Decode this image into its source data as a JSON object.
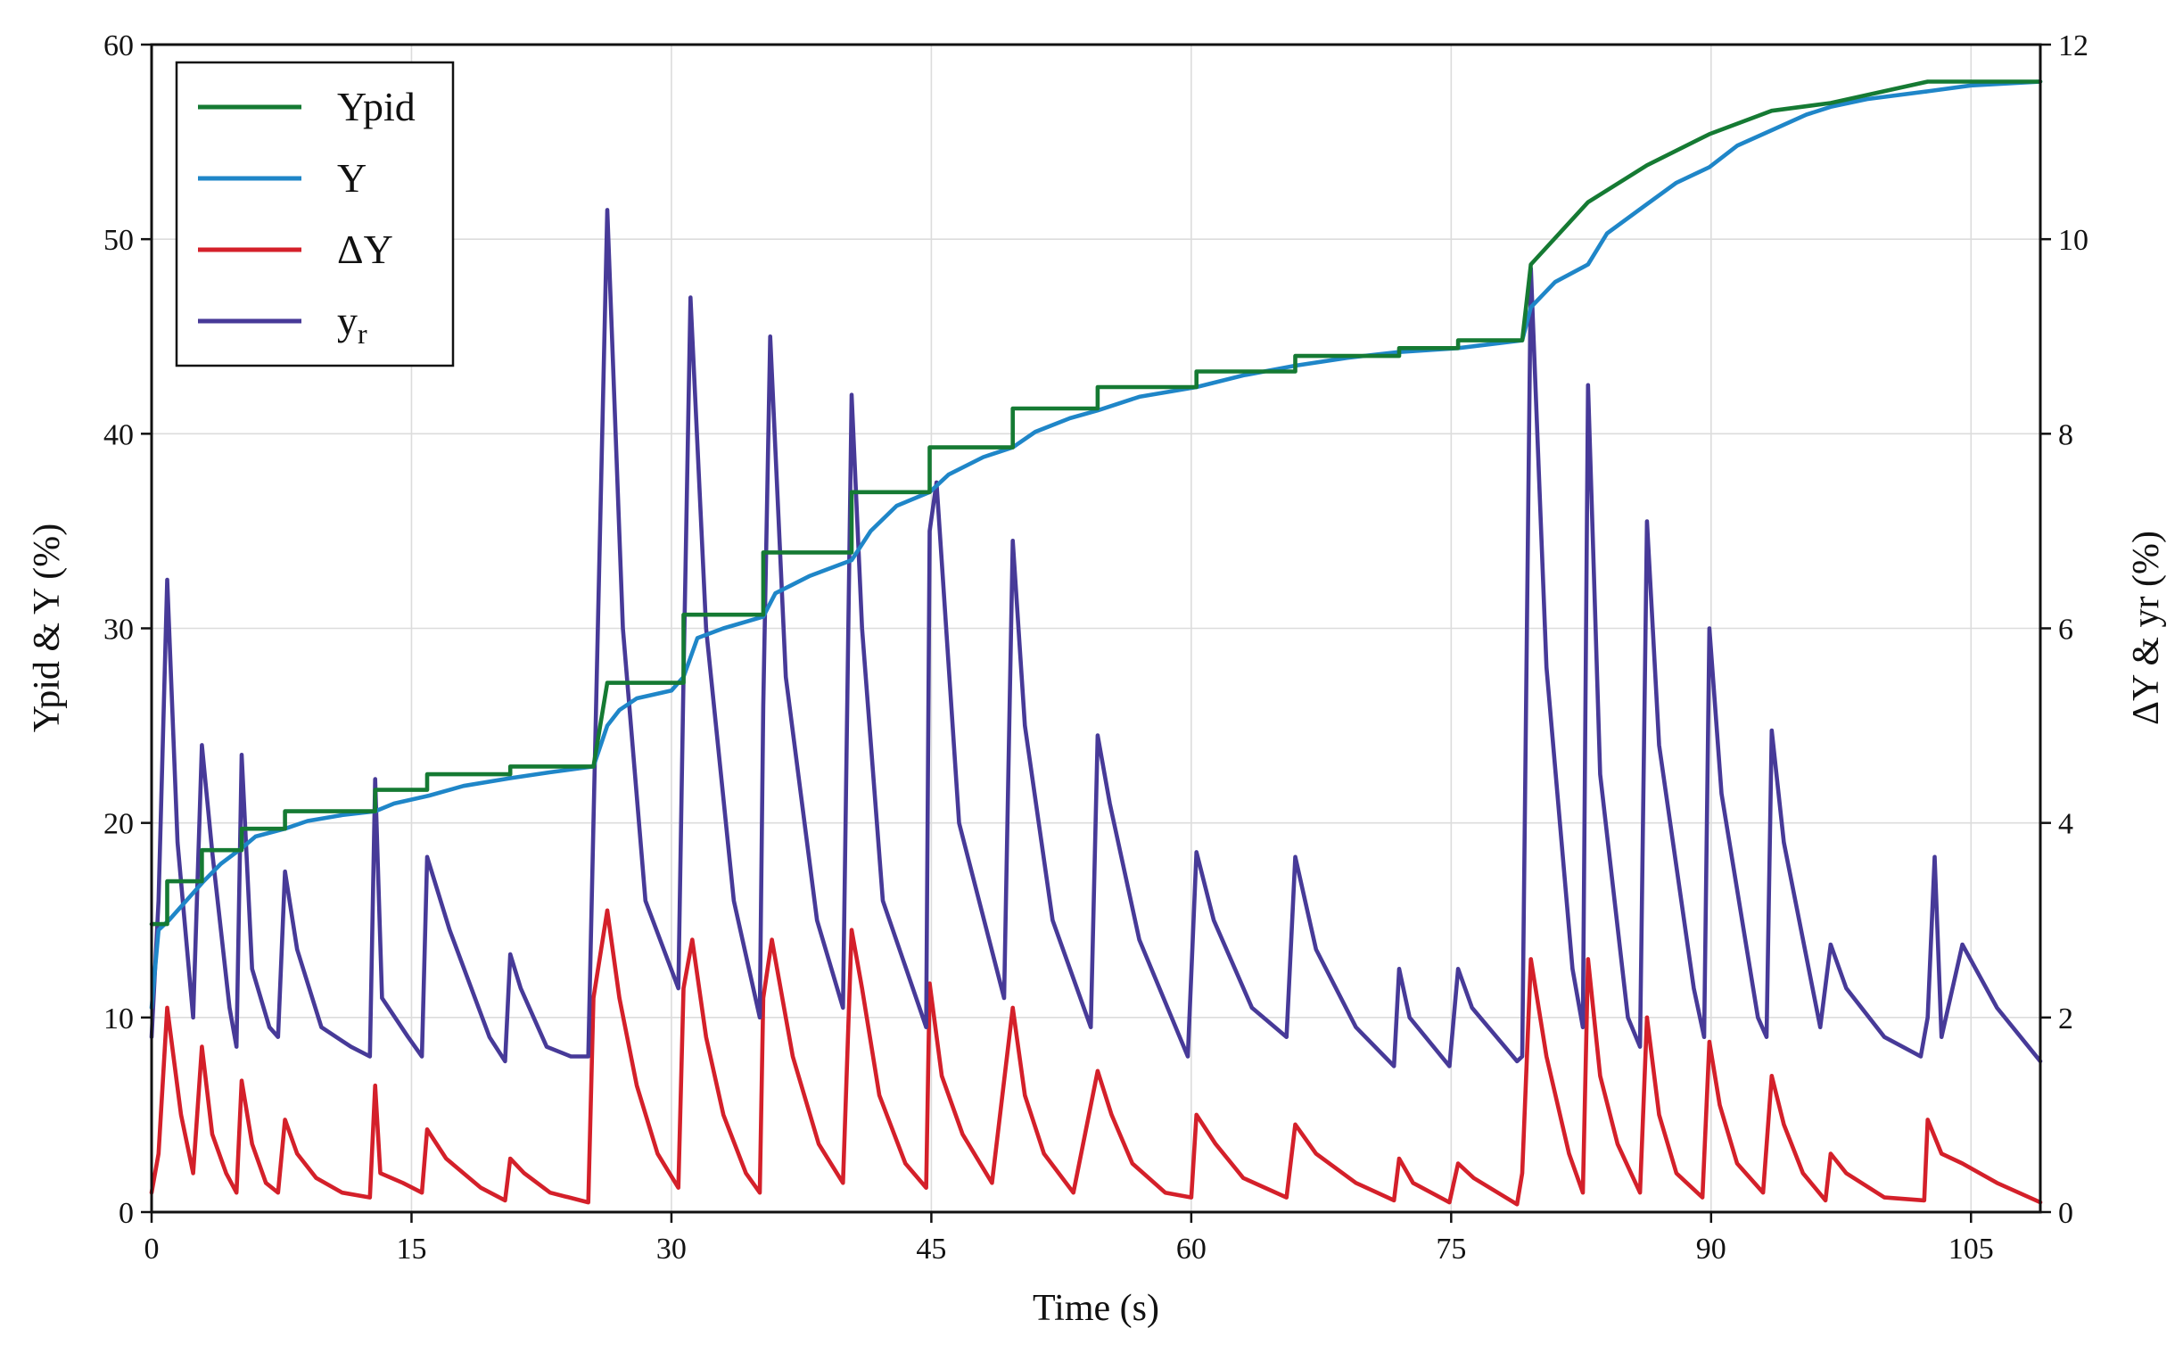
{
  "chart_data": {
    "type": "line",
    "title": "",
    "xlabel": "Time (s)",
    "ylabel_left": "Ypid & Y (%)",
    "ylabel_right": "ΔY & yr (%)",
    "xlim": [
      0,
      109
    ],
    "ylim_left": [
      0,
      60
    ],
    "ylim_right": [
      0,
      12
    ],
    "x_ticks": [
      0,
      15,
      30,
      45,
      60,
      75,
      90,
      105
    ],
    "y_left_ticks": [
      0,
      10,
      20,
      30,
      40,
      50,
      60
    ],
    "y_right_ticks": [
      0,
      2,
      4,
      6,
      8,
      10,
      12
    ],
    "grid": true,
    "legend_position": "top-left",
    "series": [
      {
        "name": "Ypid",
        "axis": "left",
        "color": "#157a33",
        "x": [
          0,
          0.9,
          0.9,
          2.9,
          2.9,
          5.2,
          5.2,
          7.7,
          7.7,
          12.9,
          12.9,
          15.9,
          15.9,
          20.7,
          20.7,
          25.5,
          26.3,
          26.3,
          30.7,
          30.7,
          35.3,
          35.3,
          40.4,
          40.4,
          44.9,
          44.9,
          49.7,
          49.7,
          54.6,
          54.6,
          60.3,
          60.3,
          66.0,
          66.0,
          72.0,
          72.0,
          75.4,
          75.4,
          79.1,
          79.6,
          79.6,
          82.9,
          82.9,
          86.3,
          86.3,
          89.9,
          89.9,
          93.5,
          93.5,
          96.9,
          96.9,
          102.5,
          102.5,
          109
        ],
        "values": [
          14.8,
          14.8,
          17.0,
          17.0,
          18.6,
          18.6,
          19.7,
          19.7,
          20.6,
          20.6,
          21.7,
          21.7,
          22.5,
          22.5,
          22.9,
          22.9,
          27.2,
          27.2,
          27.2,
          30.7,
          30.7,
          33.9,
          33.9,
          37.0,
          37.0,
          39.3,
          39.3,
          41.3,
          41.3,
          42.4,
          42.4,
          43.2,
          43.2,
          44.0,
          44.0,
          44.4,
          44.4,
          44.8,
          44.8,
          48.7,
          48.7,
          51.9,
          51.9,
          53.8,
          53.8,
          55.4,
          55.4,
          56.6,
          56.6,
          57.0,
          57.0,
          58.1,
          58.1,
          58.1
        ]
      },
      {
        "name": "Y",
        "axis": "left",
        "color": "#1f86c8",
        "x": [
          0,
          0.4,
          1.0,
          2.0,
          3.0,
          4.0,
          5.2,
          6.0,
          7.7,
          9.0,
          11.0,
          12.9,
          14.0,
          16.0,
          18.0,
          20.7,
          23.0,
          25.5,
          26.3,
          27.0,
          28.0,
          30.0,
          30.7,
          31.5,
          33.0,
          35.3,
          36.0,
          38.0,
          40.4,
          41.5,
          43.0,
          44.9,
          46.0,
          48.0,
          49.7,
          51.0,
          53.0,
          54.6,
          57.0,
          60.3,
          63.0,
          66.0,
          69.0,
          72.0,
          75.4,
          79.1,
          79.6,
          81.0,
          82.9,
          84.0,
          86.3,
          88.0,
          89.9,
          91.5,
          93.5,
          95.5,
          96.9,
          99.0,
          102.5,
          105.0,
          109.0
        ],
        "values": [
          10.5,
          14.5,
          15.0,
          16.0,
          17.0,
          17.9,
          18.7,
          19.3,
          19.7,
          20.1,
          20.4,
          20.6,
          21.0,
          21.4,
          21.9,
          22.3,
          22.6,
          22.9,
          25.0,
          25.8,
          26.4,
          26.8,
          27.5,
          29.5,
          30.0,
          30.6,
          31.8,
          32.7,
          33.5,
          35.0,
          36.3,
          37.0,
          37.9,
          38.8,
          39.3,
          40.1,
          40.8,
          41.2,
          41.9,
          42.4,
          43.0,
          43.5,
          43.9,
          44.2,
          44.4,
          44.8,
          46.5,
          47.8,
          48.7,
          50.3,
          51.8,
          52.9,
          53.7,
          54.8,
          55.6,
          56.4,
          56.8,
          57.2,
          57.6,
          57.9,
          58.1
        ]
      },
      {
        "name": "ΔY",
        "axis": "right",
        "color": "#d4202a",
        "x": [
          0,
          0.4,
          0.9,
          1.7,
          2.4,
          2.9,
          3.5,
          4.3,
          4.9,
          5.2,
          5.8,
          6.6,
          7.3,
          7.7,
          8.4,
          9.5,
          11.0,
          12.6,
          12.9,
          13.2,
          14.5,
          15.6,
          15.9,
          17.0,
          19.0,
          20.4,
          20.7,
          21.5,
          23.0,
          25.2,
          25.5,
          26.3,
          27.0,
          28.0,
          29.2,
          30.4,
          30.7,
          31.2,
          32.0,
          33.0,
          34.3,
          35.1,
          35.3,
          35.8,
          37.0,
          38.5,
          39.9,
          40.4,
          41.0,
          42.0,
          43.5,
          44.7,
          44.9,
          45.6,
          46.8,
          48.5,
          49.7,
          50.4,
          51.5,
          53.2,
          54.6,
          55.4,
          56.6,
          58.5,
          60.0,
          60.3,
          61.4,
          63.0,
          65.5,
          66.0,
          67.2,
          69.5,
          71.7,
          72.0,
          72.8,
          74.9,
          75.4,
          76.3,
          78.8,
          79.1,
          79.6,
          80.5,
          81.8,
          82.6,
          82.9,
          83.6,
          84.6,
          85.9,
          86.3,
          87.0,
          88.0,
          89.5,
          89.9,
          90.5,
          91.5,
          93.0,
          93.5,
          94.2,
          95.3,
          96.6,
          96.9,
          97.8,
          100.0,
          102.3,
          102.5,
          103.3,
          104.5,
          106.5,
          109.0
        ],
        "values": [
          0.2,
          0.6,
          2.1,
          1.0,
          0.4,
          1.7,
          0.8,
          0.4,
          0.2,
          1.35,
          0.7,
          0.3,
          0.2,
          0.95,
          0.6,
          0.35,
          0.2,
          0.15,
          1.3,
          0.4,
          0.3,
          0.2,
          0.85,
          0.55,
          0.25,
          0.12,
          0.55,
          0.4,
          0.2,
          0.1,
          2.2,
          3.1,
          2.2,
          1.3,
          0.6,
          0.25,
          2.3,
          2.8,
          1.8,
          1.0,
          0.4,
          0.2,
          2.2,
          2.8,
          1.6,
          0.7,
          0.3,
          2.9,
          2.3,
          1.2,
          0.5,
          0.25,
          2.35,
          1.4,
          0.8,
          0.3,
          2.1,
          1.2,
          0.6,
          0.2,
          1.45,
          1.0,
          0.5,
          0.2,
          0.15,
          1.0,
          0.7,
          0.35,
          0.15,
          0.9,
          0.6,
          0.3,
          0.12,
          0.55,
          0.3,
          0.1,
          0.5,
          0.35,
          0.08,
          0.4,
          2.6,
          1.6,
          0.6,
          0.2,
          2.6,
          1.4,
          0.7,
          0.2,
          2.0,
          1.0,
          0.4,
          0.15,
          1.75,
          1.1,
          0.5,
          0.2,
          1.4,
          0.9,
          0.4,
          0.12,
          0.6,
          0.4,
          0.15,
          0.12,
          0.95,
          0.6,
          0.5,
          0.3,
          0.1
        ]
      },
      {
        "name": "yr",
        "axis": "right",
        "color": "#473a98",
        "x": [
          0,
          0.4,
          0.9,
          1.5,
          2.4,
          2.9,
          3.5,
          4.5,
          4.9,
          5.2,
          5.8,
          6.8,
          7.3,
          7.7,
          8.4,
          9.8,
          11.5,
          12.6,
          12.9,
          13.3,
          14.8,
          15.6,
          15.9,
          17.2,
          19.5,
          20.4,
          20.7,
          21.3,
          22.8,
          24.2,
          25.2,
          25.5,
          26.3,
          27.2,
          28.5,
          30.4,
          30.7,
          31.1,
          32.0,
          33.6,
          35.1,
          35.3,
          35.7,
          36.6,
          38.4,
          39.9,
          40.4,
          41.0,
          42.2,
          44.7,
          44.9,
          45.3,
          46.6,
          49.2,
          49.7,
          50.4,
          52.0,
          54.2,
          54.6,
          55.3,
          57.0,
          59.8,
          60.3,
          61.3,
          63.5,
          65.5,
          66.0,
          67.2,
          69.5,
          71.7,
          72.0,
          72.6,
          74.9,
          75.4,
          76.2,
          78.8,
          79.1,
          79.6,
          80.5,
          82.0,
          82.6,
          82.9,
          83.6,
          85.2,
          85.9,
          86.3,
          87.0,
          89.0,
          89.6,
          89.9,
          90.6,
          92.7,
          93.2,
          93.5,
          94.2,
          96.3,
          96.9,
          97.8,
          100.0,
          102.1,
          102.5,
          102.9,
          103.3,
          104.5,
          106.5,
          109.0
        ],
        "values": [
          1.8,
          3.2,
          6.5,
          3.8,
          2.0,
          4.8,
          3.7,
          2.1,
          1.7,
          4.7,
          2.5,
          1.9,
          1.8,
          3.5,
          2.7,
          1.9,
          1.7,
          1.6,
          4.45,
          2.2,
          1.8,
          1.6,
          3.65,
          2.9,
          1.8,
          1.55,
          2.65,
          2.3,
          1.7,
          1.6,
          1.6,
          4.0,
          10.3,
          6.0,
          3.2,
          2.3,
          5.5,
          9.4,
          6.0,
          3.2,
          2.0,
          5.2,
          9.0,
          5.5,
          3.0,
          2.1,
          8.4,
          6.0,
          3.2,
          1.9,
          7.0,
          7.5,
          4.0,
          2.2,
          6.9,
          5.0,
          3.0,
          1.9,
          4.9,
          4.2,
          2.8,
          1.6,
          3.7,
          3.0,
          2.1,
          1.8,
          3.65,
          2.7,
          1.9,
          1.5,
          2.5,
          2.0,
          1.5,
          2.5,
          2.1,
          1.55,
          1.6,
          9.7,
          5.6,
          2.5,
          1.9,
          8.5,
          4.5,
          2.0,
          1.7,
          7.1,
          4.8,
          2.3,
          1.8,
          6.0,
          4.3,
          2.0,
          1.8,
          4.95,
          3.8,
          1.9,
          2.75,
          2.3,
          1.8,
          1.6,
          2.0,
          3.65,
          1.8,
          2.75,
          2.1,
          1.55
        ]
      }
    ]
  }
}
